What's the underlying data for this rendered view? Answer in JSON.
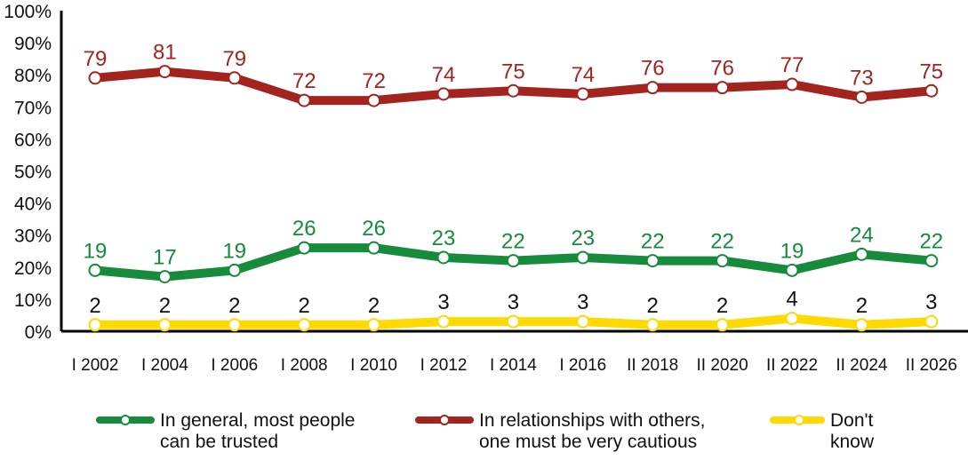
{
  "chart_data": {
    "type": "line",
    "title": "",
    "xlabel": "",
    "ylabel": "",
    "ylim": [
      0,
      100
    ],
    "y_ticks": [
      "0%",
      "10%",
      "20%",
      "30%",
      "40%",
      "50%",
      "60%",
      "70%",
      "80%",
      "90%",
      "100%"
    ],
    "grid": false,
    "legend_position": "bottom",
    "categories": [
      "I 2002",
      "I 2004",
      "I 2006",
      "I 2008",
      "I 2010",
      "I 2012",
      "I 2014",
      "I 2016",
      "II 2018",
      "II 2020",
      "II 2022",
      "II 2024",
      "II 2026"
    ],
    "series": [
      {
        "name": "In general, most people can be trusted",
        "color": "#168b3c",
        "label_color": "#168b3c",
        "values": [
          19,
          17,
          19,
          26,
          26,
          23,
          22,
          23,
          22,
          22,
          19,
          24,
          22
        ]
      },
      {
        "name": "In relationships with others, one must be very cautious",
        "color": "#a3231f",
        "label_color": "#a3231f",
        "values": [
          79,
          81,
          79,
          72,
          72,
          74,
          75,
          74,
          76,
          76,
          77,
          73,
          75
        ]
      },
      {
        "name": "Don't know",
        "color": "#ffd900",
        "label_color": "#111111",
        "values": [
          2,
          2,
          2,
          2,
          2,
          3,
          3,
          3,
          2,
          2,
          4,
          2,
          3
        ]
      }
    ]
  },
  "legend": {
    "items": [
      {
        "label": "In general, most people\ncan be trusted",
        "color": "#168b3c"
      },
      {
        "label": "In relationships with others,\none must be very cautious",
        "color": "#a3231f"
      },
      {
        "label": "Don't\nknow",
        "color": "#ffd900"
      }
    ]
  }
}
